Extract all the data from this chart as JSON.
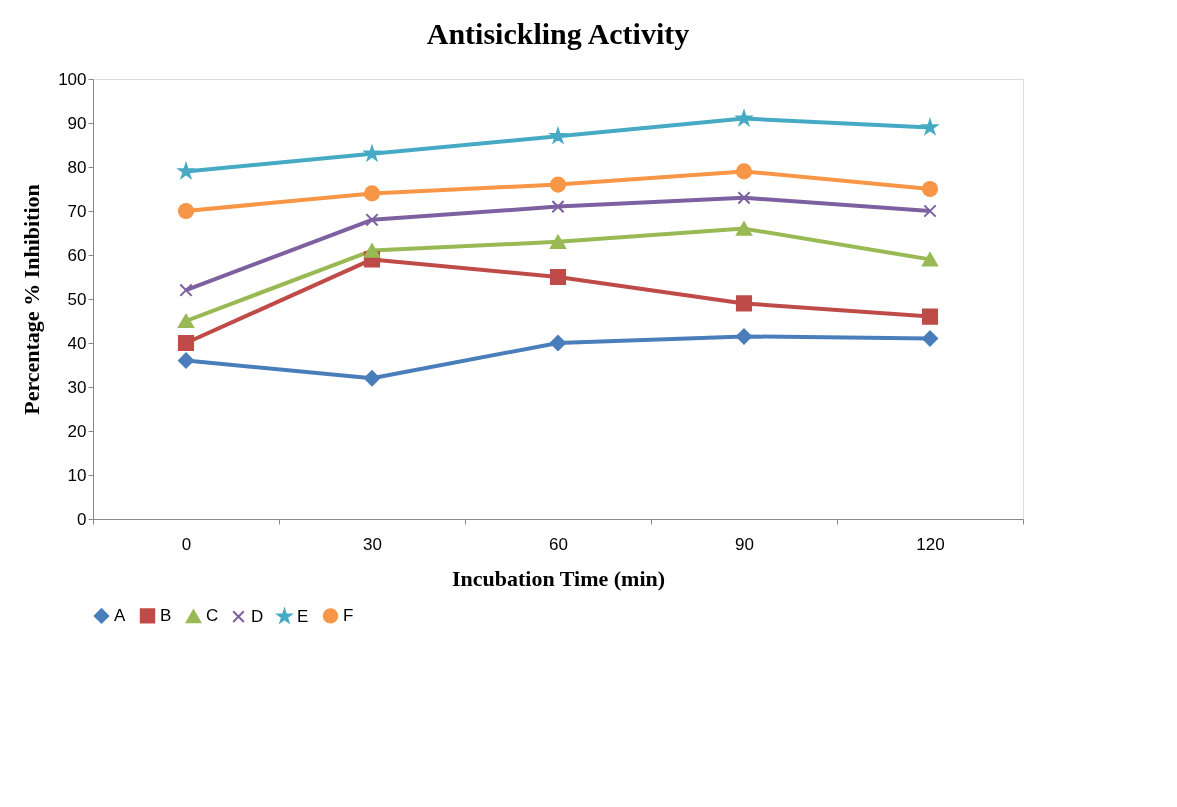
{
  "chart_data": {
    "type": "line",
    "title": "Antisickling Activity",
    "xlabel": "Incubation Time (min)",
    "ylabel": "Percentage % Inhibition",
    "categories": [
      "0",
      "30",
      "60",
      "90",
      "120"
    ],
    "ylim": [
      0,
      100
    ],
    "yticks": [
      0,
      10,
      20,
      30,
      40,
      50,
      60,
      70,
      80,
      90,
      100
    ],
    "grid": false,
    "legend": "bottom",
    "series": [
      {
        "name": "A",
        "color": "#4a7ebb",
        "marker": "diamond",
        "values": [
          36,
          32,
          40,
          41.5,
          41
        ]
      },
      {
        "name": "B",
        "color": "#be4b48",
        "marker": "square",
        "values": [
          40,
          59,
          55,
          49,
          46
        ]
      },
      {
        "name": "C",
        "color": "#98b954",
        "marker": "triangle",
        "values": [
          45,
          61,
          63,
          66,
          59
        ]
      },
      {
        "name": "D",
        "color": "#7d60a0",
        "marker": "cross",
        "values": [
          52,
          68,
          71,
          73,
          70
        ]
      },
      {
        "name": "E",
        "color": "#46aac5",
        "marker": "star",
        "values": [
          79,
          83,
          87,
          91,
          89
        ]
      },
      {
        "name": "F",
        "color": "#f79646",
        "marker": "circle",
        "values": [
          70,
          74,
          76,
          79,
          75
        ]
      }
    ]
  }
}
